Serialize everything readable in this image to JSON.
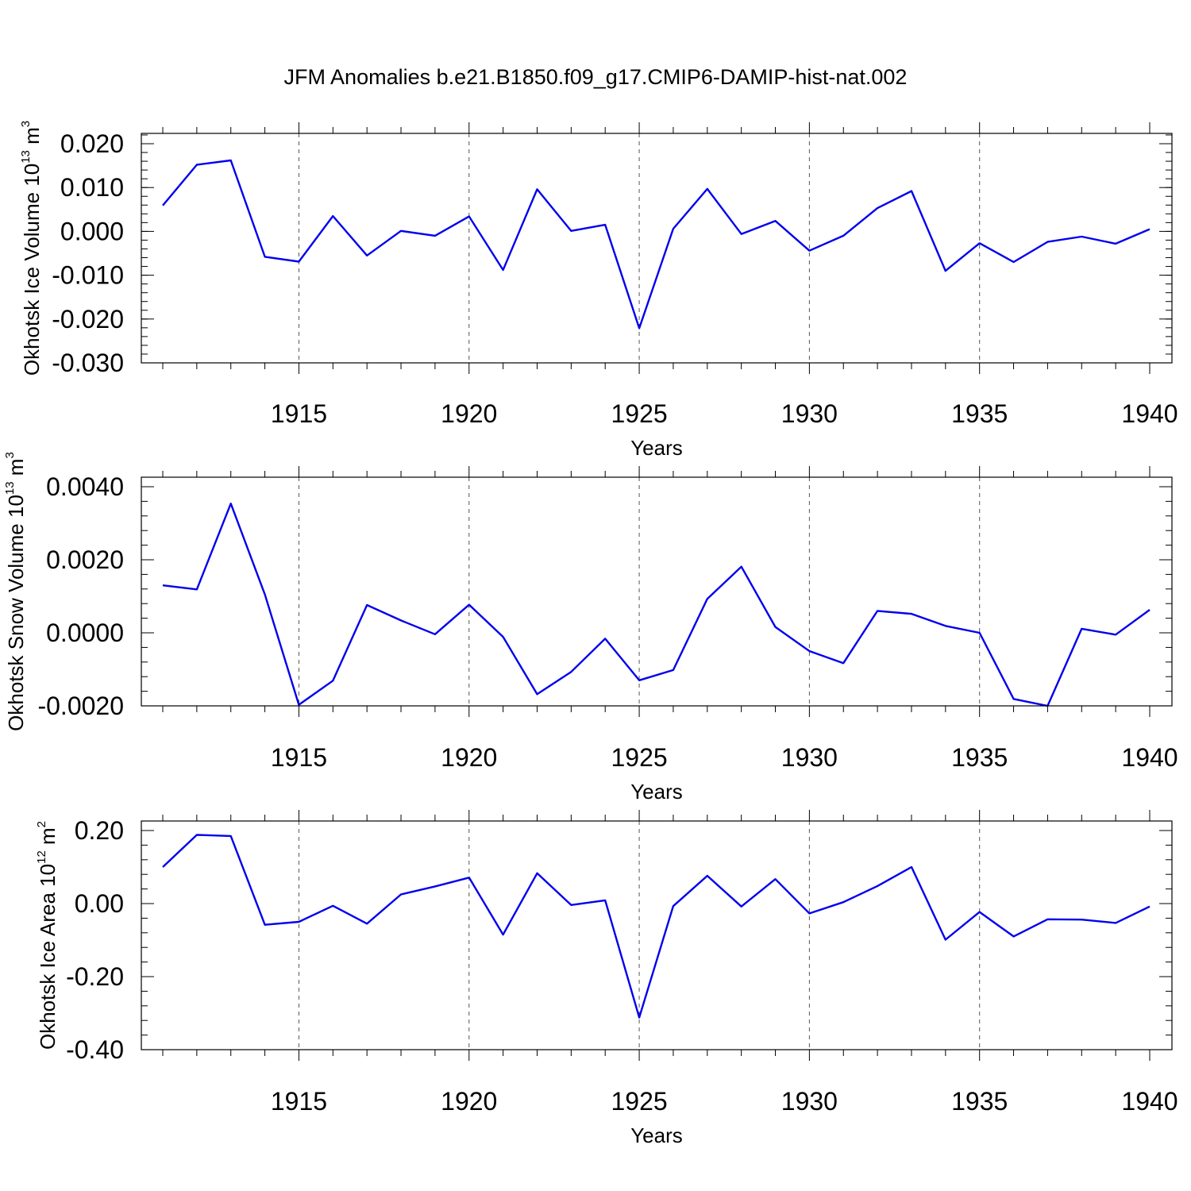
{
  "title": "JFM Anomalies b.e21.B1850.f09_g17.CMIP6-DAMIP-hist-nat.002",
  "chart_data": [
    {
      "type": "line",
      "ylabel": {
        "base": "Okhotsk Ice Volume 10",
        "exponent": "13",
        "unit": " m",
        "unit_exponent": "3"
      },
      "xlabel": "Years",
      "xlim": [
        1911,
        1940
      ],
      "ylim": [
        -0.03,
        0.022
      ],
      "yticks": [
        0.02,
        0.01,
        0.0,
        -0.01,
        -0.02,
        -0.03
      ],
      "ytick_labels": [
        "0.020",
        "0.010",
        "0.000",
        "-0.010",
        "-0.020",
        "-0.030"
      ],
      "xticks": [
        1915,
        1920,
        1925,
        1930,
        1935,
        1940
      ],
      "xtick_labels": [
        "1915",
        "1920",
        "1925",
        "1930",
        "1935",
        "1940"
      ],
      "grid": "dashed vertical at major x ticks",
      "line_color": "#0000ee",
      "x": [
        1911,
        1912,
        1913,
        1914,
        1915,
        1916,
        1917,
        1918,
        1919,
        1920,
        1921,
        1922,
        1923,
        1924,
        1925,
        1926,
        1927,
        1928,
        1929,
        1930,
        1931,
        1932,
        1933,
        1934,
        1935,
        1936,
        1937,
        1938,
        1939,
        1940
      ],
      "values": [
        0.0059,
        0.0152,
        0.0162,
        -0.0058,
        -0.0069,
        0.0035,
        -0.0055,
        0.0001,
        -0.001,
        0.0034,
        -0.0088,
        0.0096,
        0.0001,
        0.0015,
        -0.0221,
        0.0006,
        0.0097,
        -0.0006,
        0.0024,
        -0.0044,
        -0.001,
        0.0053,
        0.0092,
        -0.009,
        -0.0027,
        -0.007,
        -0.0024,
        -0.0012,
        -0.0028,
        0.0005
      ]
    },
    {
      "type": "line",
      "ylabel": {
        "base": "Okhotsk Snow Volume 10",
        "exponent": "13",
        "unit": " m",
        "unit_exponent": "3"
      },
      "xlabel": "Years",
      "xlim": [
        1911,
        1940
      ],
      "ylim": [
        -0.003,
        0.0043
      ],
      "yticks": [
        0.004,
        0.002,
        0.0,
        -0.002
      ],
      "ytick_labels": [
        "0.0040",
        "0.0020",
        "0.0000",
        "-0.0020"
      ],
      "xticks": [
        1915,
        1920,
        1925,
        1930,
        1935,
        1940
      ],
      "xtick_labels": [
        "1915",
        "1920",
        "1925",
        "1930",
        "1935",
        "1940"
      ],
      "grid": "dashed vertical at major x ticks",
      "line_color": "#0000ee",
      "x": [
        1911,
        1912,
        1913,
        1914,
        1915,
        1916,
        1917,
        1918,
        1919,
        1920,
        1921,
        1922,
        1923,
        1924,
        1925,
        1926,
        1927,
        1928,
        1929,
        1930,
        1931,
        1932,
        1933,
        1934,
        1935,
        1936,
        1937,
        1938,
        1939,
        1940
      ],
      "values": [
        0.0013,
        0.00119,
        0.00354,
        0.00105,
        -0.00197,
        -0.00131,
        0.00076,
        0.00034,
        -4e-05,
        0.00077,
        -0.00011,
        -0.00168,
        -0.00107,
        -0.00016,
        -0.0013,
        -0.00102,
        0.00093,
        0.00181,
        0.00016,
        -0.0005,
        -0.00083,
        0.0006,
        0.00052,
        0.00019,
        0.0,
        -0.00181,
        -0.002,
        0.00011,
        -5e-05,
        0.00063
      ]
    },
    {
      "type": "line",
      "ylabel": {
        "base": "Okhotsk Ice Area 10",
        "exponent": "12",
        "unit": " m",
        "unit_exponent": "2"
      },
      "xlabel": "Years",
      "xlim": [
        1911,
        1940
      ],
      "ylim": [
        -0.4,
        0.2
      ],
      "yticks": [
        0.2,
        0.0,
        -0.2,
        -0.4
      ],
      "ytick_labels": [
        "0.20",
        "0.00",
        "-0.20",
        "-0.40"
      ],
      "xticks": [
        1915,
        1920,
        1925,
        1930,
        1935,
        1940
      ],
      "xtick_labels": [
        "1915",
        "1920",
        "1925",
        "1930",
        "1935",
        "1940"
      ],
      "grid": "dashed vertical at major x ticks",
      "line_color": "#0000ee",
      "x": [
        1911,
        1912,
        1913,
        1914,
        1915,
        1916,
        1917,
        1918,
        1919,
        1920,
        1921,
        1922,
        1923,
        1924,
        1925,
        1926,
        1927,
        1928,
        1929,
        1930,
        1931,
        1932,
        1933,
        1934,
        1935,
        1936,
        1937,
        1938,
        1939,
        1940
      ],
      "values": [
        0.1,
        0.188,
        0.185,
        -0.058,
        -0.05,
        -0.006,
        -0.055,
        0.025,
        0.047,
        0.071,
        -0.085,
        0.083,
        -0.004,
        0.009,
        -0.312,
        -0.007,
        0.076,
        -0.008,
        0.067,
        -0.027,
        0.004,
        0.048,
        0.1,
        -0.099,
        -0.023,
        -0.09,
        -0.043,
        -0.044,
        -0.053,
        -0.008
      ]
    }
  ]
}
